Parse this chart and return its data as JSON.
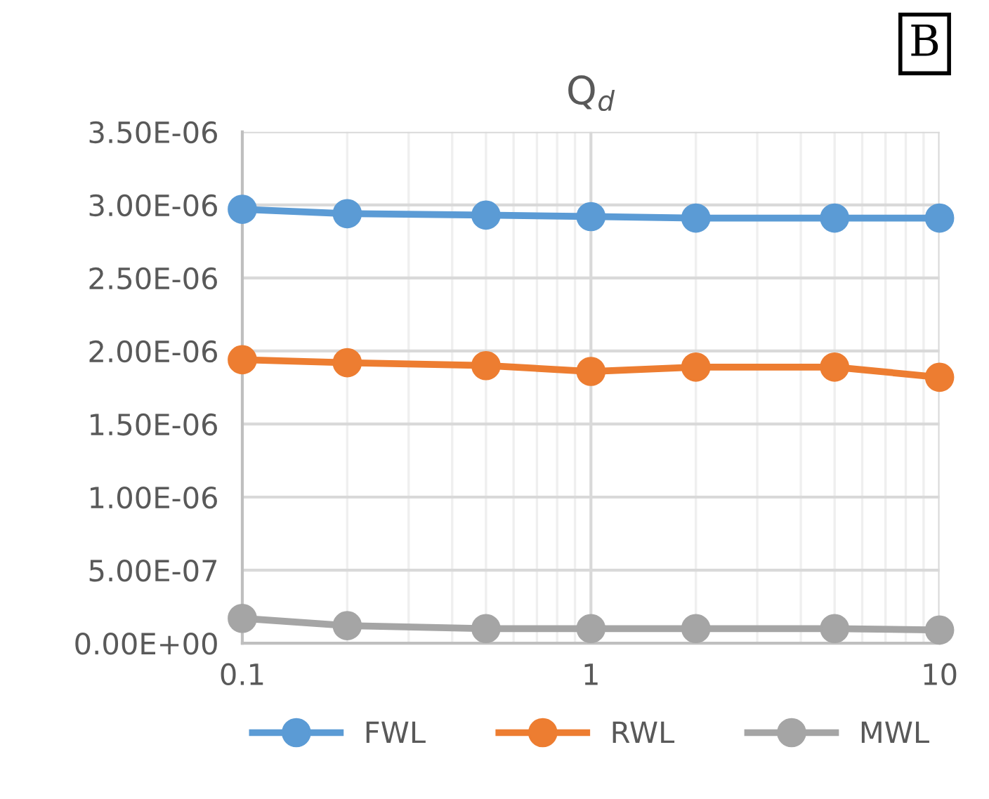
{
  "chart_data": {
    "type": "line",
    "title": "Q$_{d}$",
    "annotations": [
      "B"
    ],
    "x": [
      0.1,
      0.2,
      0.5,
      1,
      2,
      5,
      10
    ],
    "series": [
      {
        "name": "FWL",
        "color": "#5b9bd5",
        "values": [
          2.97e-06,
          2.94e-06,
          2.93e-06,
          2.92e-06,
          2.91e-06,
          2.91e-06,
          2.91e-06
        ]
      },
      {
        "name": "RWL",
        "color": "#ed7d31",
        "values": [
          1.94e-06,
          1.92e-06,
          1.9e-06,
          1.86e-06,
          1.89e-06,
          1.89e-06,
          1.82e-06
        ]
      },
      {
        "name": "MWL",
        "color": "#a5a5a5",
        "values": [
          1.7e-07,
          1.2e-07,
          1e-07,
          1e-07,
          1e-07,
          1e-07,
          9e-08
        ]
      }
    ],
    "log": "x",
    "xlim": [
      0.1,
      10
    ],
    "xticks": [
      0.1,
      1,
      10
    ],
    "ylim": [
      0,
      3.5e-06
    ],
    "yticks": [
      {
        "value": 0,
        "label": "0.00E+00"
      },
      {
        "value": 5e-07,
        "label": "5.00E-07"
      },
      {
        "value": 1e-06,
        "label": "1.00E-06"
      },
      {
        "value": 1.5e-06,
        "label": "1.50E-06"
      },
      {
        "value": 2e-06,
        "label": "2.00E-06"
      },
      {
        "value": 2.5e-06,
        "label": "2.50E-06"
      },
      {
        "value": 3e-06,
        "label": "3.00E-06"
      },
      {
        "value": 3.5e-06,
        "label": "3.50E-06"
      }
    ],
    "grid": true,
    "legend": "bottom",
    "marker": "circle",
    "line_style": "solid"
  }
}
